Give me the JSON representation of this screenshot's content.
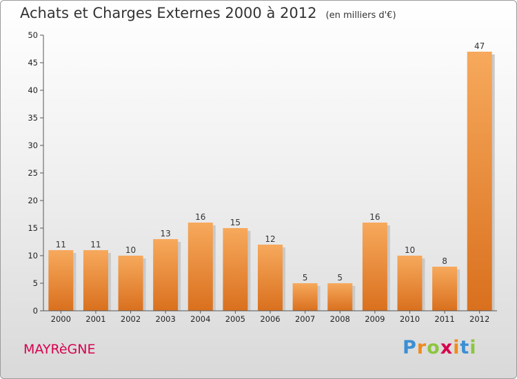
{
  "chart_data": {
    "type": "bar",
    "title": "Achats et Charges Externes 2000 à 2012",
    "subtitle": "(en milliers d'€)",
    "categories": [
      "2000",
      "2001",
      "2002",
      "2003",
      "2004",
      "2005",
      "2006",
      "2007",
      "2008",
      "2009",
      "2010",
      "2011",
      "2012"
    ],
    "values": [
      11,
      11,
      10,
      13,
      16,
      15,
      12,
      5,
      5,
      16,
      10,
      8,
      47
    ],
    "ylim": [
      0,
      50
    ],
    "yticks": [
      0,
      5,
      10,
      15,
      20,
      25,
      30,
      35,
      40,
      45,
      50
    ],
    "grid": false,
    "legend": "none",
    "colors": {
      "bar_light": "#f7a95c",
      "bar_dark": "#d9701e",
      "bar_shadow": "#c9c9c9"
    }
  },
  "footer": {
    "commune": "MAYRèGNE",
    "brand": [
      "P",
      "r",
      "o",
      "x",
      "i",
      "t",
      "i"
    ],
    "brand_colors": [
      "#3b8fd4",
      "#f08a1c",
      "#8cc63f",
      "#d6004d",
      "#f08a1c",
      "#3b8fd4",
      "#8cc63f"
    ]
  }
}
